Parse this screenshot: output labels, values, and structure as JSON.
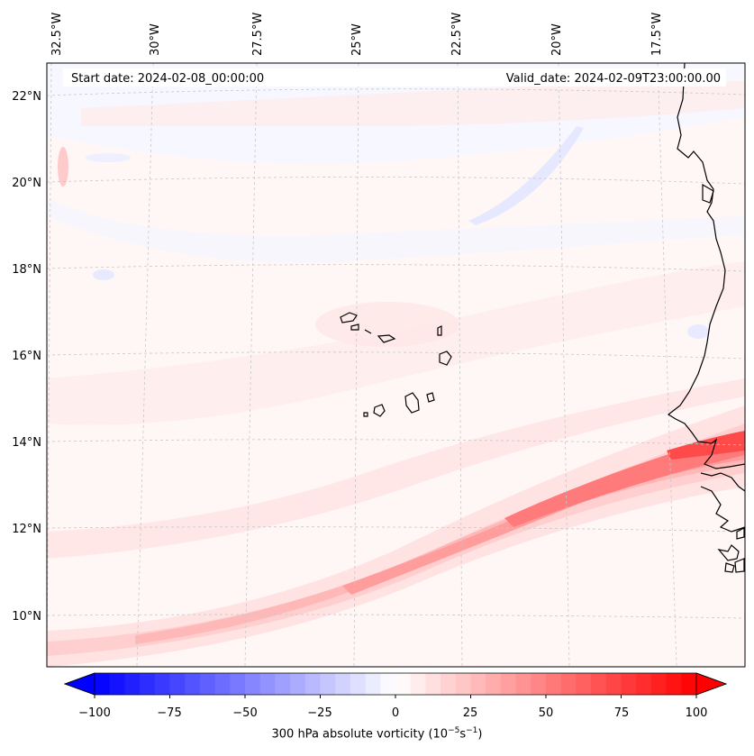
{
  "header": {
    "start_date": "Start date: 2024-02-08_00:00:00",
    "valid_date": "Valid_date: 2024-02-09T23:00:00.00"
  },
  "axes": {
    "lon_labels": [
      "32.5°W",
      "30°W",
      "27.5°W",
      "25°W",
      "22.5°W",
      "20°W",
      "17.5°W"
    ],
    "lat_labels": [
      "22°N",
      "20°N",
      "18°N",
      "16°N",
      "14°N",
      "12°N",
      "10°N"
    ]
  },
  "colorbar": {
    "ticks": [
      "−100",
      "−75",
      "−50",
      "−25",
      "0",
      "25",
      "50",
      "75",
      "100"
    ],
    "title_main": "300 hPa absolute vorticity (10",
    "title_sup1": "−5",
    "title_mid": "s",
    "title_sup2": "−1",
    "title_end": ")",
    "min_color": "#0000ff",
    "mid_color": "#ffffff",
    "max_color": "#ff0000"
  },
  "map": {
    "region": "Cape Verde and West African coast",
    "field": "300 hPa absolute vorticity"
  }
}
